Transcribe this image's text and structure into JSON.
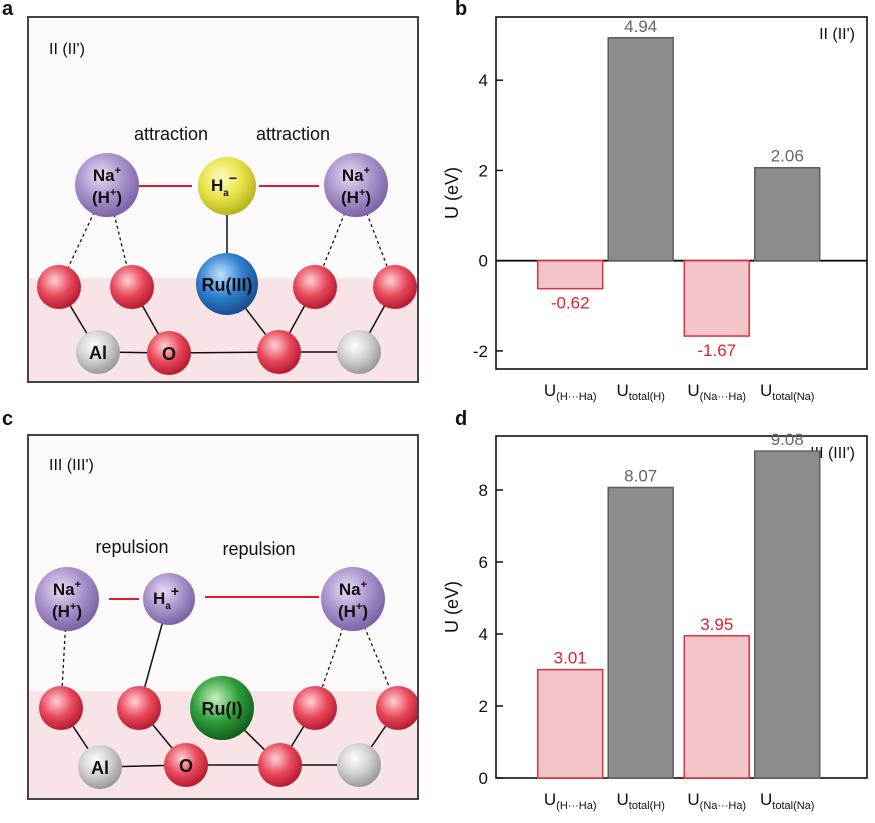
{
  "panel_a": {
    "letter": "a",
    "label": "II (II')",
    "left_text": "attraction",
    "right_text": "attraction",
    "cation": "Na",
    "cation_alt": "(H",
    "center_atom": "H",
    "center_sub": "a",
    "center_sign": "−",
    "metal": "Ru(III)",
    "al_label": "Al",
    "o_label": "O",
    "metal_color": "#2f7fcf",
    "center_color": "#e9e34a"
  },
  "panel_c": {
    "letter": "c",
    "label": "III (III')",
    "left_text": "repulsion",
    "right_text": "repulsion",
    "cation": "Na",
    "cation_alt": "(H",
    "center_atom": "H",
    "center_sub": "a",
    "center_sign": "+",
    "metal": "Ru(I)",
    "al_label": "Al",
    "o_label": "O",
    "metal_color": "#2f9f3a",
    "center_color": "#a992cc"
  },
  "colors": {
    "red_bar_fill": "#f4c5c8",
    "red_bar_edge": "#e0303c",
    "gray_bar_fill": "#8c8c8c",
    "gray_bar_edge": "#5e5e5e",
    "red_label": "#e0202c",
    "gray_label": "#666666"
  },
  "chart_data": [
    {
      "type": "bar",
      "panel": "b",
      "letter": "b",
      "title": "II (II')",
      "ylabel": "U (eV)",
      "ylim": [
        -2.4,
        5.4
      ],
      "yticks": [
        -2,
        0,
        2,
        4
      ],
      "yticklabels": [
        "-2",
        "0",
        "2",
        "4"
      ],
      "categories": [
        {
          "main": "U",
          "sub": "(H···Ha)"
        },
        {
          "main": "U",
          "sub": "total(H)"
        },
        {
          "main": "U",
          "sub": "(Na···Ha)"
        },
        {
          "main": "U",
          "sub": "total(Na)"
        }
      ],
      "values": [
        -0.62,
        4.94,
        -1.67,
        2.06
      ],
      "value_labels": [
        "-0.62",
        "4.94",
        "-1.67",
        "2.06"
      ],
      "bar_kinds": [
        "red",
        "gray",
        "red",
        "gray"
      ],
      "grid": false
    },
    {
      "type": "bar",
      "panel": "d",
      "letter": "d",
      "title": "III (III')",
      "ylabel": "U (eV)",
      "ylim": [
        0,
        9.5
      ],
      "yticks": [
        0,
        2,
        4,
        6,
        8
      ],
      "yticklabels": [
        "0",
        "2",
        "4",
        "6",
        "8"
      ],
      "categories": [
        {
          "main": "U",
          "sub": "(H···Ha)"
        },
        {
          "main": "U",
          "sub": "total(H)"
        },
        {
          "main": "U",
          "sub": "(Na···Ha)"
        },
        {
          "main": "U",
          "sub": "total(Na)"
        }
      ],
      "values": [
        3.01,
        8.07,
        3.95,
        9.08
      ],
      "value_labels": [
        "3.01",
        "8.07",
        "3.95",
        "9.08"
      ],
      "bar_kinds": [
        "red",
        "gray",
        "red",
        "gray"
      ],
      "grid": false
    }
  ]
}
